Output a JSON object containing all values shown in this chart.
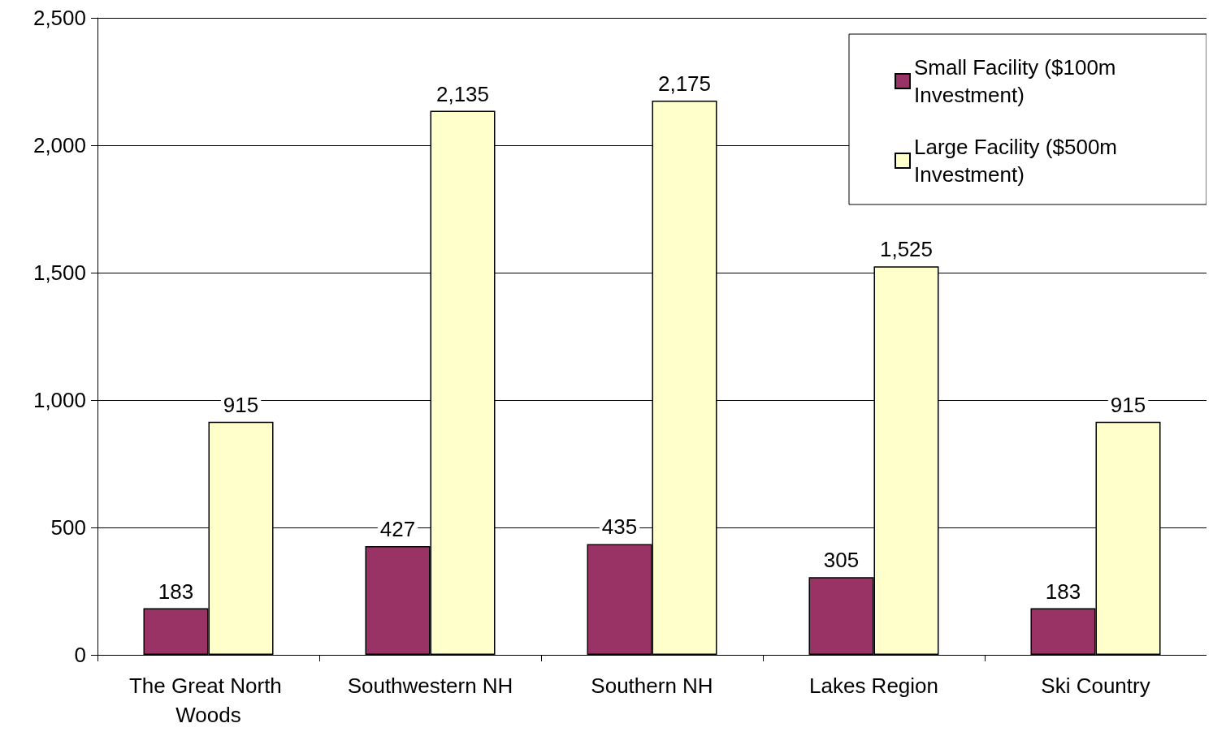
{
  "chart_data": {
    "type": "bar",
    "categories": [
      "The Great North Woods",
      "Southwestern NH",
      "Southern NH",
      "Lakes Region",
      "Ski Country"
    ],
    "series": [
      {
        "name": "Small Facility ($100m Investment)",
        "color": "#993366",
        "values": [
          183,
          427,
          435,
          305,
          183
        ],
        "value_labels": [
          "183",
          "427",
          "435",
          "305",
          "183"
        ]
      },
      {
        "name": "Large Facility ($500m Investment)",
        "color": "#ffffcc",
        "values": [
          915,
          2135,
          2175,
          1525,
          915
        ],
        "value_labels": [
          "915",
          "2,135",
          "2,175",
          "1,525",
          "915"
        ]
      }
    ],
    "ylim": [
      0,
      2500
    ],
    "yticks": [
      {
        "value": 0,
        "label": "0"
      },
      {
        "value": 500,
        "label": "500"
      },
      {
        "value": 1000,
        "label": "1,000"
      },
      {
        "value": 1500,
        "label": "1,500"
      },
      {
        "value": 2000,
        "label": "2,000"
      },
      {
        "value": 2500,
        "label": "2,500"
      }
    ],
    "grid": "y",
    "legend": "top right"
  }
}
